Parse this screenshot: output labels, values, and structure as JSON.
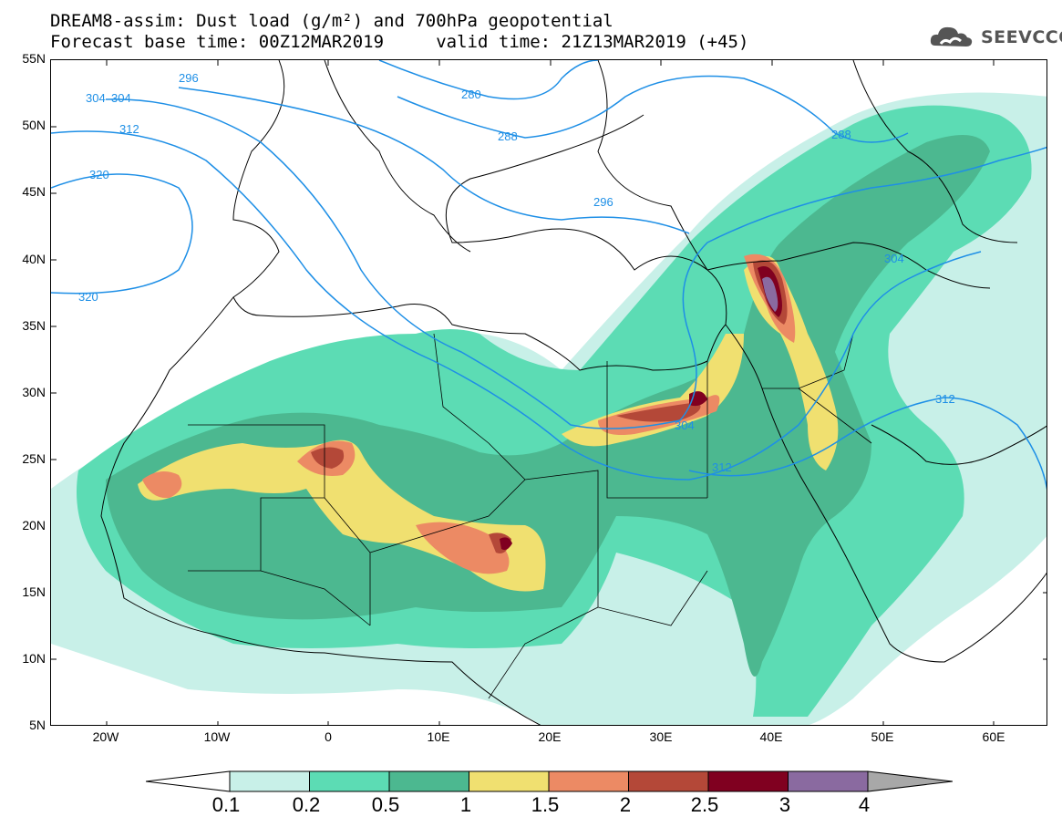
{
  "header": {
    "line1": "DREAM8-assim: Dust load (g/m²) and 700hPa geopotential",
    "line2": "Forecast base time: 00Z12MAR2019     valid time: 21Z13MAR2019 (+45)",
    "logo_text": "SEEVCCC",
    "logo_icon": "cloud-icon"
  },
  "map": {
    "lat_labels": [
      "55N",
      "50N",
      "45N",
      "40N",
      "35N",
      "30N",
      "25N",
      "20N",
      "15N",
      "10N",
      "5N"
    ],
    "lon_labels": [
      "20W",
      "10W",
      "0",
      "10E",
      "20E",
      "30E",
      "40E",
      "50E",
      "60E"
    ],
    "contour_labels": [
      "296",
      "304",
      "304",
      "312",
      "320",
      "320",
      "280",
      "288",
      "288",
      "296",
      "304",
      "312",
      "304",
      "312"
    ],
    "colors": {
      "contour": "#1e8fe6",
      "c01": "#c8f0e8",
      "c02": "#5cdcb4",
      "c05": "#4cb890",
      "c1": "#f0e070",
      "c15": "#ec8a64",
      "c2": "#b44838",
      "c25": "#800020",
      "c3": "#8a6aa0",
      "c4": "#a8a8a8"
    }
  },
  "colorbar": {
    "labels": [
      "0.1",
      "0.2",
      "0.5",
      "1",
      "1.5",
      "2",
      "2.5",
      "3",
      "4"
    ],
    "colors": [
      "#c8f0e8",
      "#5cdcb4",
      "#4cb890",
      "#f0e070",
      "#ec8a64",
      "#b44838",
      "#800020",
      "#8a6aa0"
    ]
  }
}
